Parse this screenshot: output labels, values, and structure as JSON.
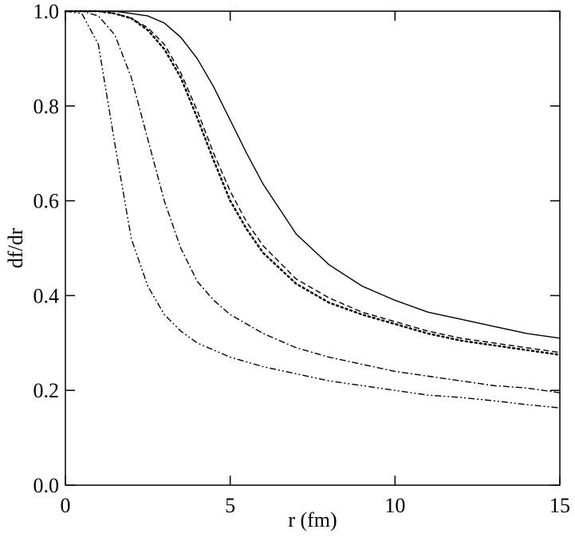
{
  "chart_data": {
    "type": "line",
    "xlabel": "r (fm)",
    "ylabel": "df/dr",
    "x": [
      0,
      0.5,
      1,
      1.5,
      2,
      2.5,
      3,
      3.5,
      4,
      4.5,
      5,
      5.5,
      6,
      7,
      8,
      9,
      10,
      11,
      12,
      13,
      14,
      15
    ],
    "series": [
      {
        "color": "#000000",
        "dash": "solid",
        "values": [
          1,
          1,
          1,
          1,
          0.995,
          0.99,
          0.975,
          0.945,
          0.9,
          0.84,
          0.77,
          0.7,
          0.635,
          0.53,
          0.465,
          0.42,
          0.39,
          0.365,
          0.35,
          0.335,
          0.32,
          0.31
        ]
      },
      {
        "color": "#000000",
        "dash": "dashed",
        "values": [
          1,
          1,
          1,
          0.995,
          0.985,
          0.965,
          0.93,
          0.87,
          0.79,
          0.7,
          0.62,
          0.555,
          0.505,
          0.435,
          0.395,
          0.365,
          0.345,
          0.325,
          0.31,
          0.3,
          0.29,
          0.28
        ]
      },
      {
        "color": "#000000",
        "dash": "dotted",
        "values": [
          1,
          1,
          1,
          0.995,
          0.985,
          0.96,
          0.92,
          0.86,
          0.775,
          0.685,
          0.6,
          0.54,
          0.49,
          0.425,
          0.385,
          0.36,
          0.34,
          0.32,
          0.305,
          0.295,
          0.285,
          0.275
        ]
      },
      {
        "color": "#000000",
        "dash": "dashdot",
        "values": [
          1,
          1,
          0.99,
          0.95,
          0.86,
          0.73,
          0.6,
          0.5,
          0.43,
          0.39,
          0.36,
          0.34,
          0.32,
          0.29,
          0.27,
          0.255,
          0.24,
          0.23,
          0.22,
          0.21,
          0.205,
          0.195
        ]
      },
      {
        "color": "#000000",
        "dash": "dashdotdot",
        "values": [
          1,
          0.995,
          0.93,
          0.72,
          0.52,
          0.42,
          0.36,
          0.325,
          0.3,
          0.285,
          0.27,
          0.26,
          0.25,
          0.235,
          0.22,
          0.21,
          0.2,
          0.19,
          0.185,
          0.178,
          0.17,
          0.163
        ]
      }
    ],
    "xlim": [
      0,
      15
    ],
    "xticks": [
      0,
      5,
      10,
      15
    ],
    "ylim": [
      0,
      1
    ],
    "yticks": [
      {
        "value": 0,
        "label": "0.0"
      },
      0.2,
      0.4,
      0.6,
      0.8,
      {
        "value": 1,
        "label": "1.0"
      }
    ],
    "grid": false
  }
}
